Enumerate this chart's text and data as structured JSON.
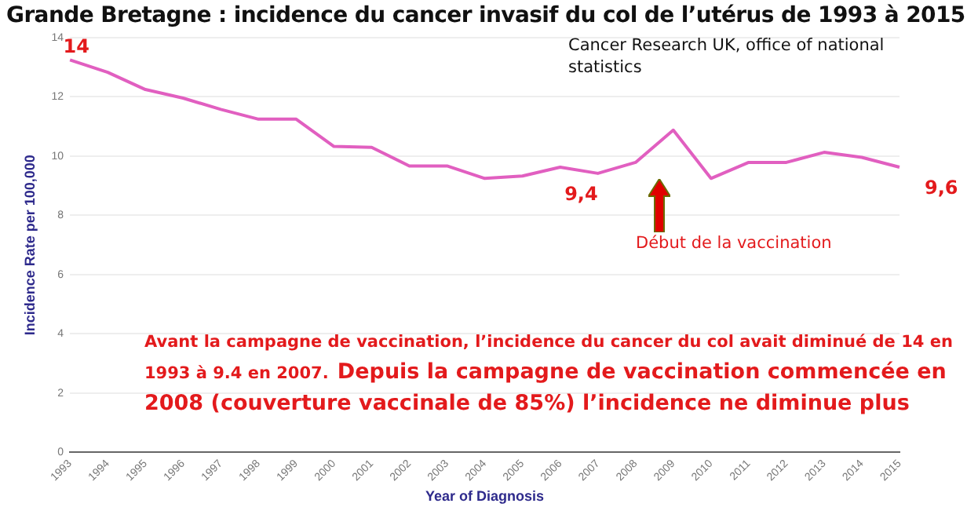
{
  "chart_data": {
    "type": "line",
    "title": "Grande Bretagne : incidence du cancer invasif du col de l’utérus de 1993 à 2015",
    "xlabel": "Year of Diagnosis",
    "ylabel": "Incidence Rate per 100,000",
    "categories": [
      "1993",
      "1994",
      "1995",
      "1996",
      "1997",
      "1998",
      "1999",
      "2000",
      "2001",
      "2002",
      "2003",
      "2004",
      "2005",
      "2006",
      "2007",
      "2008",
      "2009",
      "2010",
      "2011",
      "2012",
      "2013",
      "2014",
      "2015"
    ],
    "series": [
      {
        "color": "#e15fc0",
        "values": [
          13.25,
          12.83,
          12.25,
          11.96,
          11.58,
          11.25,
          11.25,
          10.33,
          10.3,
          9.67,
          9.67,
          9.25,
          9.33,
          9.63,
          9.42,
          9.79,
          10.88,
          9.25,
          9.79,
          9.79,
          10.13,
          9.96,
          9.63
        ]
      }
    ],
    "ylim": [
      0,
      14
    ],
    "yticks": [
      0,
      2,
      4,
      6,
      8,
      10,
      12,
      14
    ],
    "grid": "y",
    "legend": false,
    "marker": "none",
    "line_style": "solid",
    "annotations": [
      {
        "text": "14",
        "x": "1993",
        "y": 13.25
      },
      {
        "text": "9,4",
        "x": "2007",
        "y": 9.42
      },
      {
        "text": "9,6",
        "x": "2015",
        "y": 9.63
      },
      "Cancer Research UK, office of national statistics",
      "Début de la vaccination",
      "Avant la campagne de vaccination, l’incidence du cancer du col avait diminué de 14 en 1993 à 9.4 en 2007.",
      "Depuis la campagne de vaccination commencée en 2008 (couverture vaccinale de 85%) l’incidence ne diminue plus"
    ]
  }
}
